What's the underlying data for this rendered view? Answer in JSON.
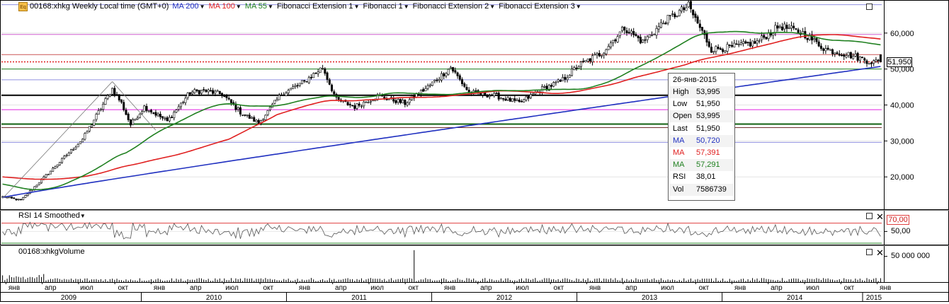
{
  "header": {
    "symbol_title": "00168:xhkg Weekly Local time (GMT+0)",
    "indicators": [
      {
        "label": "MA 200",
        "color": "#2030c0"
      },
      {
        "label": "MA 100",
        "color": "#e02020"
      },
      {
        "label": "MA 55",
        "color": "#208020"
      },
      {
        "label": "Fibonacci Extension 1",
        "color": "#000000"
      },
      {
        "label": "Fibonacci 1",
        "color": "#000000"
      },
      {
        "label": "Fibonacci Extension 2",
        "color": "#000000"
      },
      {
        "label": "Fibonacci Extension 3",
        "color": "#000000"
      }
    ],
    "icon": "app-logo-icon"
  },
  "rsi_panel": {
    "title": "RSI 14 Smoothed",
    "overbought_label": "70,00",
    "mid_label": "50,00"
  },
  "volume_panel": {
    "title": "00168:xhkgVolume",
    "axis_label": "50 000 000"
  },
  "last_price_label": "51,950",
  "tooltip": {
    "date": "26-янв-2015",
    "rows": [
      {
        "label": "High",
        "value": "53,995",
        "color": "#000000"
      },
      {
        "label": "Low",
        "value": "51,950",
        "color": "#000000"
      },
      {
        "label": "Open",
        "value": "53,995",
        "color": "#000000"
      },
      {
        "label": "Last",
        "value": "51,950",
        "color": "#000000"
      },
      {
        "label": "MA",
        "value": "50,720",
        "color": "#2030c0"
      },
      {
        "label": "MA",
        "value": "57,391",
        "color": "#e02020"
      },
      {
        "label": "MA",
        "value": "57,291",
        "color": "#208020"
      },
      {
        "label": "RSI",
        "value": "38,01",
        "color": "#000000"
      },
      {
        "label": "Vol",
        "value": "7586739",
        "color": "#000000"
      }
    ]
  },
  "chart_data": {
    "type": "candlestick",
    "symbol": "00168:xhkg",
    "interval": "Weekly",
    "price_axis": {
      "ticks": [
        20000,
        30000,
        40000,
        50000,
        60000
      ],
      "tick_labels": [
        "20,000",
        "30,000",
        "40,000",
        "50,000",
        "60,000"
      ],
      "range": [
        11000,
        69000
      ]
    },
    "time_axis": {
      "months": [
        "янв",
        "апр",
        "июл",
        "окт",
        "янв",
        "апр",
        "июл",
        "окт",
        "янв",
        "апр",
        "июл",
        "окт",
        "янв",
        "апр",
        "июл",
        "окт",
        "янв",
        "апр",
        "июл",
        "окт",
        "янв",
        "апр",
        "июл",
        "окт",
        "янв"
      ],
      "years": [
        "2009",
        "2010",
        "2011",
        "2012",
        "2013",
        "2014",
        "2015"
      ]
    },
    "close_keypoints": [
      [
        0,
        14500
      ],
      [
        8,
        13500
      ],
      [
        20,
        21000
      ],
      [
        35,
        30500
      ],
      [
        48,
        44500
      ],
      [
        52,
        40500
      ],
      [
        56,
        34500
      ],
      [
        62,
        39500
      ],
      [
        72,
        35500
      ],
      [
        82,
        43500
      ],
      [
        88,
        44000
      ],
      [
        96,
        43000
      ],
      [
        104,
        38000
      ],
      [
        112,
        35000
      ],
      [
        122,
        43000
      ],
      [
        132,
        46500
      ],
      [
        140,
        50500
      ],
      [
        146,
        41500
      ],
      [
        154,
        39500
      ],
      [
        164,
        42500
      ],
      [
        176,
        40500
      ],
      [
        186,
        45000
      ],
      [
        196,
        50500
      ],
      [
        204,
        43500
      ],
      [
        216,
        42500
      ],
      [
        226,
        40500
      ],
      [
        236,
        44500
      ],
      [
        244,
        46500
      ],
      [
        252,
        51000
      ],
      [
        262,
        54500
      ],
      [
        272,
        61500
      ],
      [
        280,
        57500
      ],
      [
        290,
        63500
      ],
      [
        300,
        67500
      ],
      [
        310,
        55500
      ],
      [
        318,
        56000
      ],
      [
        330,
        57500
      ],
      [
        340,
        62000
      ],
      [
        350,
        60000
      ],
      [
        360,
        55500
      ],
      [
        370,
        54000
      ],
      [
        380,
        52000
      ],
      [
        384,
        51950
      ]
    ],
    "moving_averages": [
      {
        "name": "MA 200",
        "color": "#2030c0",
        "last": 50720
      },
      {
        "name": "MA 100",
        "color": "#e02020",
        "last": 57391
      },
      {
        "name": "MA 55",
        "color": "#208020",
        "last": 57291
      }
    ],
    "horizontal_levels": [
      {
        "price": 67900,
        "color": "#9090e0"
      },
      {
        "price": 59600,
        "color": "#d060d0"
      },
      {
        "price": 54000,
        "color": "#cc5555"
      },
      {
        "price": 52000,
        "color": "#e02020",
        "dotted": true
      },
      {
        "price": 50000,
        "color": "#208020"
      },
      {
        "price": 47000,
        "color": "#9090e0"
      },
      {
        "price": 42700,
        "color": "#000000"
      },
      {
        "price": 38700,
        "color": "#e020e0"
      },
      {
        "price": 34700,
        "color": "#106010"
      },
      {
        "price": 33700,
        "color": "#703030"
      },
      {
        "price": 29600,
        "color": "#9090e0"
      }
    ],
    "fibonacci_trendlines": [
      {
        "from": [
          0,
          14000
        ],
        "to": [
          48,
          46500
        ]
      },
      {
        "from": [
          48,
          46500
        ],
        "to": [
          67,
          33000
        ]
      }
    ],
    "rsi": {
      "overbought": 70,
      "mid": 50,
      "last": 38.01
    },
    "volume": {
      "spike_week": 180,
      "spike_value": 62000000,
      "last": 7586739
    }
  }
}
